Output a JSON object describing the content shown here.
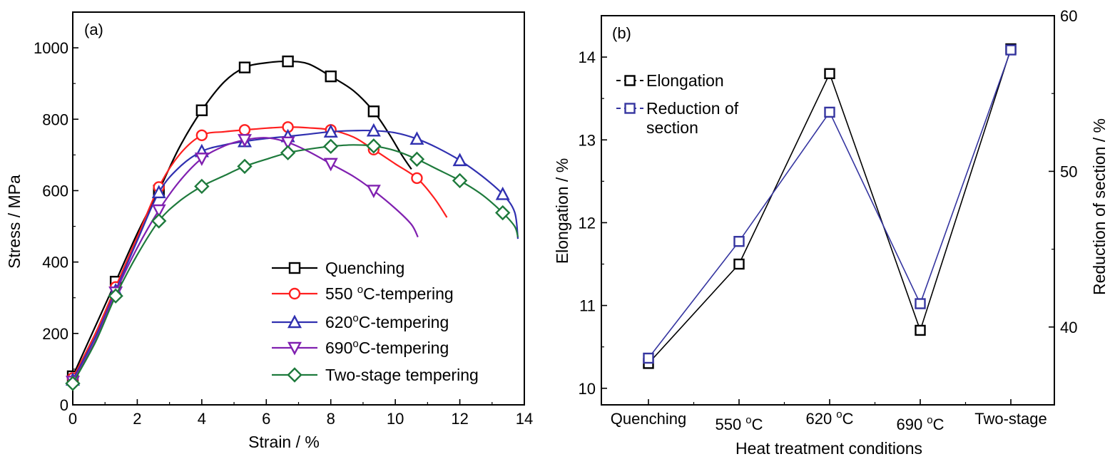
{
  "chart_data": [
    {
      "type": "line",
      "panel_label": "(a)",
      "xlabel": "Strain / %",
      "ylabel": "Stress / MPa",
      "xlim": [
        0,
        14
      ],
      "ylim": [
        0,
        1100
      ],
      "xticks": [
        "0",
        "2",
        "4",
        "6",
        "8",
        "10",
        "12",
        "14"
      ],
      "yticks": [
        "0",
        "200",
        "400",
        "600",
        "800",
        "1000"
      ],
      "legend_position": "bottom-right",
      "grid": false,
      "series": [
        {
          "name": "Quenching",
          "color": "#000000",
          "marker": "square",
          "curve": [
            [
              0,
              80
            ],
            [
              0.7,
              220
            ],
            [
              1.33,
              345
            ],
            [
              2,
              480
            ],
            [
              2.67,
              600
            ],
            [
              3.3,
              720
            ],
            [
              4,
              825
            ],
            [
              4.7,
              905
            ],
            [
              5.33,
              945
            ],
            [
              6,
              958
            ],
            [
              6.67,
              962
            ],
            [
              7.3,
              955
            ],
            [
              8,
              920
            ],
            [
              8.7,
              880
            ],
            [
              9.33,
              822
            ],
            [
              9.8,
              760
            ],
            [
              10.2,
              700
            ],
            [
              10.5,
              660
            ]
          ],
          "points": [
            [
              0,
              80
            ],
            [
              1.33,
              345
            ],
            [
              2.67,
              600
            ],
            [
              4,
              825
            ],
            [
              5.33,
              945
            ],
            [
              6.67,
              962
            ],
            [
              8,
              920
            ],
            [
              9.33,
              822
            ]
          ]
        },
        {
          "name": "550 oC-tempering",
          "color": "#ff2020",
          "marker": "circle",
          "curve": [
            [
              0,
              75
            ],
            [
              0.7,
              200
            ],
            [
              1.33,
              330
            ],
            [
              2,
              470
            ],
            [
              2.67,
              610
            ],
            [
              3.3,
              700
            ],
            [
              4,
              755
            ],
            [
              4.7,
              765
            ],
            [
              5.33,
              770
            ],
            [
              6,
              775
            ],
            [
              6.67,
              778
            ],
            [
              7.3,
              776
            ],
            [
              8,
              770
            ],
            [
              8.7,
              750
            ],
            [
              9.33,
              715
            ],
            [
              10,
              675
            ],
            [
              10.67,
              635
            ],
            [
              11.2,
              580
            ],
            [
              11.6,
              525
            ]
          ],
          "points": [
            [
              0,
              75
            ],
            [
              1.33,
              330
            ],
            [
              2.67,
              610
            ],
            [
              4,
              755
            ],
            [
              5.33,
              770
            ],
            [
              6.67,
              778
            ],
            [
              8,
              770
            ],
            [
              9.33,
              715
            ],
            [
              10.67,
              635
            ]
          ]
        },
        {
          "name": "620oC-tempering",
          "color": "#3030b0",
          "marker": "triangle-up",
          "curve": [
            [
              0,
              70
            ],
            [
              0.7,
              190
            ],
            [
              1.33,
              320
            ],
            [
              2,
              460
            ],
            [
              2.67,
              595
            ],
            [
              3.3,
              665
            ],
            [
              4,
              710
            ],
            [
              4.7,
              728
            ],
            [
              5.33,
              738
            ],
            [
              6,
              746
            ],
            [
              6.67,
              752
            ],
            [
              7.3,
              758
            ],
            [
              8,
              765
            ],
            [
              8.7,
              768
            ],
            [
              9.33,
              768
            ],
            [
              10,
              762
            ],
            [
              10.67,
              745
            ],
            [
              11.3,
              720
            ],
            [
              12,
              685
            ],
            [
              12.7,
              640
            ],
            [
              13.33,
              590
            ],
            [
              13.7,
              540
            ],
            [
              13.8,
              465
            ]
          ],
          "points": [
            [
              0,
              70
            ],
            [
              1.33,
              320
            ],
            [
              2.67,
              595
            ],
            [
              4,
              710
            ],
            [
              5.33,
              738
            ],
            [
              6.67,
              752
            ],
            [
              8,
              765
            ],
            [
              9.33,
              768
            ],
            [
              10.67,
              745
            ],
            [
              12,
              685
            ],
            [
              13.33,
              590
            ]
          ]
        },
        {
          "name": "690oC-tempering",
          "color": "#8020b0",
          "marker": "triangle-down",
          "curve": [
            [
              0,
              65
            ],
            [
              0.7,
              180
            ],
            [
              1.33,
              315
            ],
            [
              2,
              440
            ],
            [
              2.67,
              545
            ],
            [
              3.3,
              625
            ],
            [
              4,
              690
            ],
            [
              4.7,
              725
            ],
            [
              5.33,
              742
            ],
            [
              6,
              748
            ],
            [
              6.67,
              735
            ],
            [
              7.3,
              710
            ],
            [
              8,
              675
            ],
            [
              8.7,
              640
            ],
            [
              9.33,
              600
            ],
            [
              10,
              550
            ],
            [
              10.5,
              505
            ],
            [
              10.7,
              470
            ]
          ],
          "points": [
            [
              0,
              65
            ],
            [
              1.33,
              315
            ],
            [
              2.67,
              545
            ],
            [
              4,
              690
            ],
            [
              5.33,
              742
            ],
            [
              6.67,
              735
            ],
            [
              8,
              675
            ],
            [
              9.33,
              600
            ]
          ]
        },
        {
          "name": "Two-stage tempering",
          "color": "#1e7a3c",
          "marker": "diamond",
          "curve": [
            [
              0,
              60
            ],
            [
              0.7,
              175
            ],
            [
              1.33,
              305
            ],
            [
              2,
              420
            ],
            [
              2.67,
              515
            ],
            [
              3.3,
              570
            ],
            [
              4,
              612
            ],
            [
              4.7,
              642
            ],
            [
              5.33,
              668
            ],
            [
              6,
              688
            ],
            [
              6.67,
              706
            ],
            [
              7.3,
              716
            ],
            [
              8,
              724
            ],
            [
              8.7,
              728
            ],
            [
              9.33,
              725
            ],
            [
              10,
              712
            ],
            [
              10.67,
              688
            ],
            [
              11.3,
              660
            ],
            [
              12,
              628
            ],
            [
              12.7,
              588
            ],
            [
              13.33,
              538
            ],
            [
              13.7,
              500
            ],
            [
              13.8,
              470
            ]
          ],
          "points": [
            [
              0,
              60
            ],
            [
              1.33,
              305
            ],
            [
              2.67,
              515
            ],
            [
              4,
              612
            ],
            [
              5.33,
              668
            ],
            [
              6.67,
              706
            ],
            [
              8,
              724
            ],
            [
              9.33,
              725
            ],
            [
              10.67,
              688
            ],
            [
              12,
              628
            ],
            [
              13.33,
              538
            ]
          ]
        }
      ]
    },
    {
      "type": "line",
      "panel_label": "(b)",
      "xlabel": "Heat treatment conditions",
      "ylabel": "Elongation / %",
      "y2label": "Reduction of section / %",
      "categories": [
        "Quenching",
        "550 oC",
        "620 oC",
        "690 oC",
        "Two-stage"
      ],
      "ylim": [
        9.8,
        14.5
      ],
      "y2lim": [
        35,
        60
      ],
      "yticks": [
        "10",
        "11",
        "12",
        "13",
        "14"
      ],
      "y2ticks": [
        "40",
        "50",
        "60"
      ],
      "legend_position": "top-left",
      "grid": false,
      "series": [
        {
          "name": "Elongation",
          "color": "#000000",
          "marker": "square",
          "axis": "left",
          "values": [
            10.3,
            11.5,
            13.8,
            10.7,
            14.1
          ]
        },
        {
          "name": "Reduction of section",
          "color": "#3535a0",
          "marker": "square",
          "axis": "right",
          "values": [
            38.0,
            45.5,
            53.8,
            41.5,
            57.8
          ]
        }
      ]
    }
  ]
}
